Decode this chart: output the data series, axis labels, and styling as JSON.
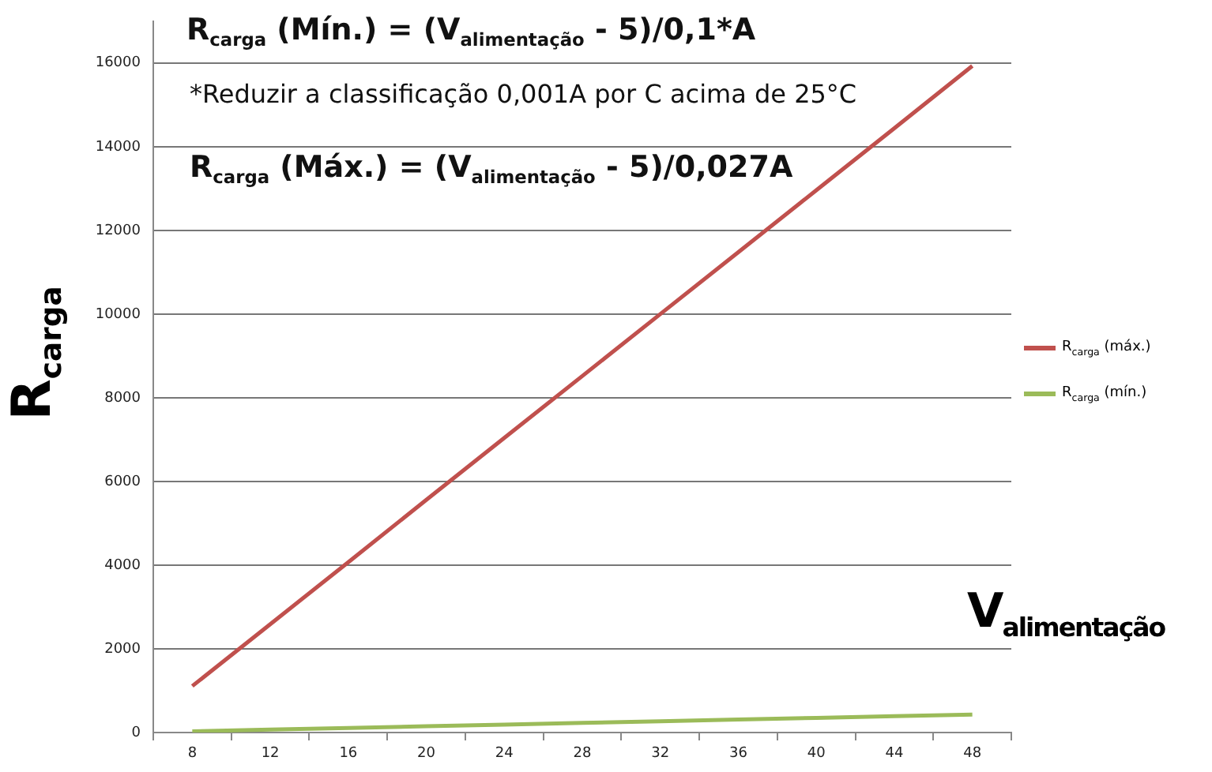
{
  "chart_data": {
    "type": "line",
    "xlabel": "V$_{alimentação}$",
    "ylabel": "R$_{carga}$",
    "categories": [
      "8",
      "12",
      "16",
      "20",
      "24",
      "28",
      "32",
      "36",
      "40",
      "44",
      "48"
    ],
    "series": [
      {
        "name": "R$_{carga}$ (máx.)",
        "color": "#c0504d",
        "values": [
          1110,
          2590,
          4070,
          5560,
          7040,
          8520,
          10000,
          11480,
          12960,
          14440,
          15930
        ]
      },
      {
        "name": "R$_{carga}$ (mín.)",
        "color": "#9bbb59",
        "values": [
          30,
          70,
          110,
          150,
          190,
          230,
          270,
          310,
          350,
          390,
          430
        ]
      }
    ],
    "ylim": [
      0,
      17000
    ],
    "yticks": [
      0,
      2000,
      4000,
      6000,
      8000,
      10000,
      12000,
      14000,
      16000
    ],
    "grid": "y",
    "legend": "right",
    "marker": "none",
    "line_style": "solid",
    "annotations": [
      "R$_{carga}$ (Mín.) = (V$_{alimentação}$ - 5)/0,1*A",
      "*Reduzir a classificação 0,001A por C acima de 25°C",
      "R$_{carga}$ (Máx.) = (V$_{alimentação}$ - 5)/0,027A"
    ]
  }
}
